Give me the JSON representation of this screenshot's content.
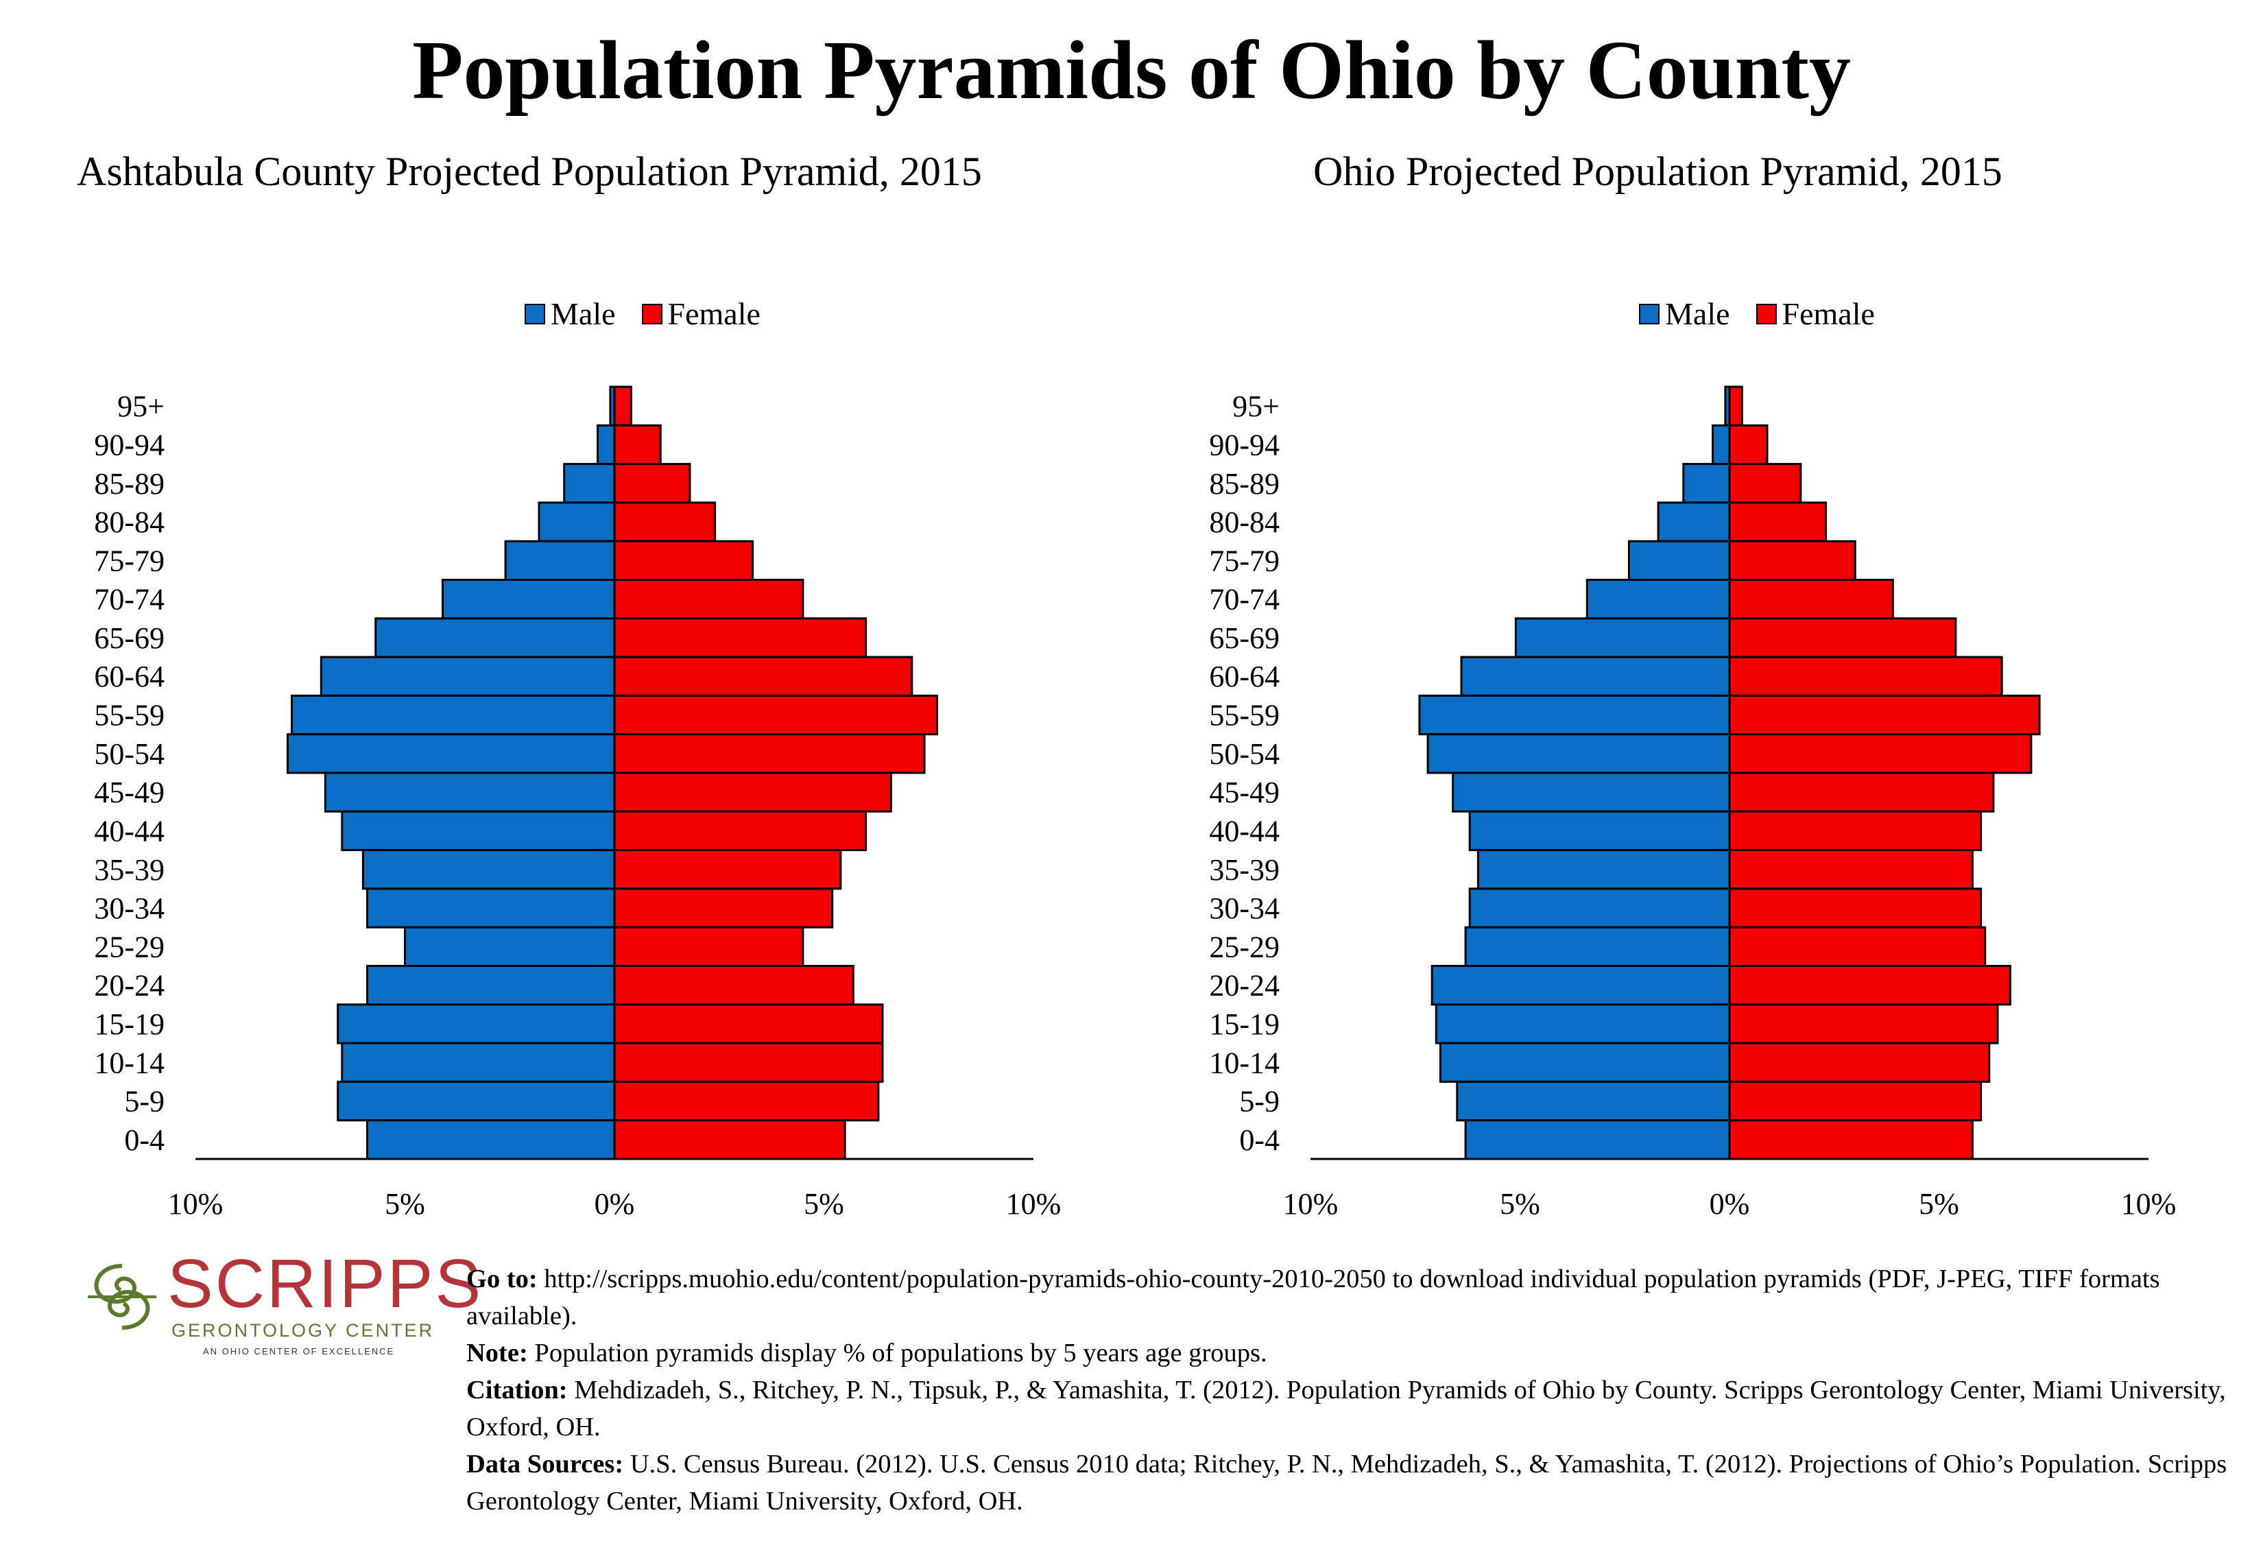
{
  "page": {
    "title": "Population Pyramids of Ohio by County"
  },
  "colors": {
    "male": "#0b6fc6",
    "female": "#f50000",
    "logo_red": "#b4343a",
    "logo_green": "#5b7a2e"
  },
  "legend": {
    "male_label": "Male",
    "female_label": "Female"
  },
  "chart_data": [
    {
      "type": "bar",
      "orientation": "horizontal-pyramid",
      "title": "Ashtabula County Projected Population Pyramid, 2015",
      "categories": [
        "95+",
        "90-94",
        "85-89",
        "80-84",
        "75-79",
        "70-74",
        "65-69",
        "60-64",
        "55-59",
        "50-54",
        "45-49",
        "40-44",
        "35-39",
        "30-34",
        "25-29",
        "20-24",
        "15-19",
        "10-14",
        "5-9",
        "0-4"
      ],
      "series": [
        {
          "name": "Male",
          "values": [
            0.1,
            0.4,
            1.2,
            1.8,
            2.6,
            4.1,
            5.7,
            7.0,
            7.7,
            7.8,
            6.9,
            6.5,
            6.0,
            5.9,
            5.0,
            5.9,
            6.6,
            6.5,
            6.6,
            5.9
          ]
        },
        {
          "name": "Female",
          "values": [
            0.4,
            1.1,
            1.8,
            2.4,
            3.3,
            4.5,
            6.0,
            7.1,
            7.7,
            7.4,
            6.6,
            6.0,
            5.4,
            5.2,
            4.5,
            5.7,
            6.4,
            6.4,
            6.3,
            5.5
          ]
        }
      ],
      "xlim": [
        -10,
        10
      ],
      "tick_labels": [
        "10%",
        "5%",
        "0%",
        "5%",
        "10%"
      ],
      "legend_position": "top-center"
    },
    {
      "type": "bar",
      "orientation": "horizontal-pyramid",
      "title": "Ohio Projected Population Pyramid, 2015",
      "categories": [
        "95+",
        "90-94",
        "85-89",
        "80-84",
        "75-79",
        "70-74",
        "65-69",
        "60-64",
        "55-59",
        "50-54",
        "45-49",
        "40-44",
        "35-39",
        "30-34",
        "25-29",
        "20-24",
        "15-19",
        "10-14",
        "5-9",
        "0-4"
      ],
      "series": [
        {
          "name": "Male",
          "values": [
            0.1,
            0.4,
            1.1,
            1.7,
            2.4,
            3.4,
            5.1,
            6.4,
            7.4,
            7.2,
            6.6,
            6.2,
            6.0,
            6.2,
            6.3,
            7.1,
            7.0,
            6.9,
            6.5,
            6.3
          ]
        },
        {
          "name": "Female",
          "values": [
            0.3,
            0.9,
            1.7,
            2.3,
            3.0,
            3.9,
            5.4,
            6.5,
            7.4,
            7.2,
            6.3,
            6.0,
            5.8,
            6.0,
            6.1,
            6.7,
            6.4,
            6.2,
            6.0,
            5.8
          ]
        }
      ],
      "xlim": [
        -10,
        10
      ],
      "tick_labels": [
        "10%",
        "5%",
        "0%",
        "5%",
        "10%"
      ],
      "legend_position": "top-center"
    }
  ],
  "footer": {
    "goto_label": "Go to:",
    "goto_text": " http://scripps.muohio.edu/content/population-pyramids-ohio-county-2010-2050 to download individual population pyramids (PDF, J-PEG, TIFF formats available).",
    "note_label": "Note:",
    "note_text": " Population pyramids display % of populations by 5 years age groups.",
    "citation_label": "Citation:",
    "citation_text": " Mehdizadeh, S., Ritchey, P. N., Tipsuk, P., & Yamashita, T. (2012). Population Pyramids of Ohio by County. Scripps Gerontology Center, Miami University, Oxford, OH.",
    "sources_label": "Data Sources:",
    "sources_text": " U.S. Census Bureau. (2012). U.S. Census 2010 data; Ritchey, P. N., Mehdizadeh, S., & Yamashita, T. (2012). Projections of Ohio’s Population. Scripps Gerontology Center, Miami University, Oxford, OH."
  },
  "logo": {
    "word": "SCRIPPS",
    "subtitle": "GERONTOLOGY CENTER",
    "tagline": "AN OHIO CENTER OF EXCELLENCE"
  }
}
